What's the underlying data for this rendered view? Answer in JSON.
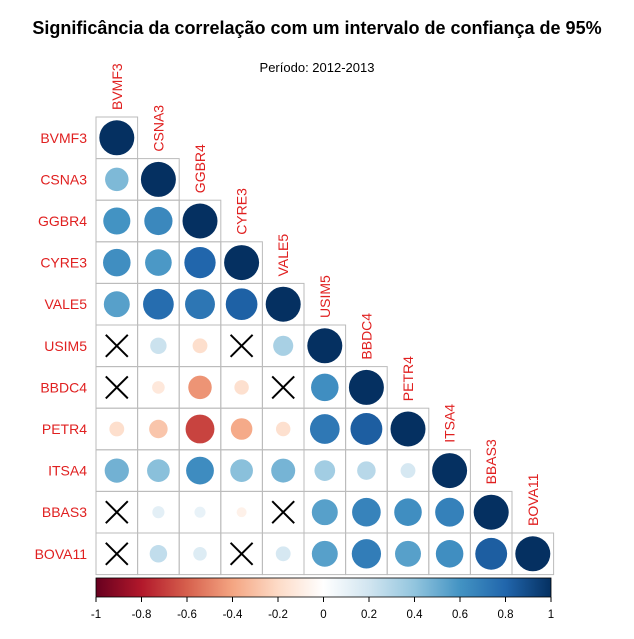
{
  "chart_data": {
    "type": "heatmap",
    "title": "Significância da correlação com um intervalo de confiança de 95%",
    "subtitle": "Período: 2012-2013",
    "variables": [
      "BVMF3",
      "CSNA3",
      "GGBR4",
      "CYRE3",
      "VALE5",
      "USIM5",
      "BBDC4",
      "PETR4",
      "ITSA4",
      "BBAS3",
      "BOVA11"
    ],
    "layout": "lower-triangle",
    "matrix": [
      [
        1.0
      ],
      [
        0.45,
        1.0
      ],
      [
        0.6,
        0.65,
        1.0
      ],
      [
        0.62,
        0.58,
        0.8,
        1.0
      ],
      [
        0.55,
        0.77,
        0.73,
        0.82,
        1.0
      ],
      [
        0.03,
        0.22,
        -0.18,
        0.02,
        0.33,
        1.0
      ],
      [
        0.05,
        -0.13,
        -0.45,
        -0.17,
        0.05,
        0.62,
        1.0
      ],
      [
        -0.18,
        -0.28,
        -0.68,
        -0.38,
        -0.17,
        0.72,
        0.83,
        1.0
      ],
      [
        0.48,
        0.42,
        0.63,
        0.42,
        0.47,
        0.35,
        0.28,
        0.18,
        1.0
      ],
      [
        0.03,
        0.12,
        0.1,
        -0.08,
        0.02,
        0.55,
        0.67,
        0.62,
        0.68,
        1.0
      ],
      [
        0.08,
        0.25,
        0.15,
        0.05,
        0.18,
        0.55,
        0.7,
        0.55,
        0.62,
        0.83,
        1.0
      ]
    ],
    "insignificant": [
      [
        5,
        0
      ],
      [
        5,
        3
      ],
      [
        6,
        0
      ],
      [
        6,
        4
      ],
      [
        9,
        0
      ],
      [
        9,
        4
      ],
      [
        10,
        0
      ],
      [
        10,
        3
      ]
    ],
    "insignificant_marker": "cross",
    "color_scale": {
      "min": -1,
      "max": 1,
      "stops": [
        "#67001F",
        "#B2182B",
        "#D6604D",
        "#F4A582",
        "#FDDBC7",
        "#FFFFFF",
        "#D1E5F0",
        "#92C5DE",
        "#4393C3",
        "#2166AC",
        "#053061"
      ],
      "ticks": [
        -1,
        -0.8,
        -0.6,
        -0.4,
        -0.2,
        0,
        0.2,
        0.4,
        0.6,
        0.8,
        1
      ],
      "tick_labels": [
        "-1",
        "-0.8",
        "-0.6",
        "-0.4",
        "-0.2",
        "0",
        "0.2",
        "0.4",
        "0.6",
        "0.8",
        "1"
      ]
    },
    "label_color": "#E02020",
    "grid_color": "#BBBBBB",
    "legend": "bottom"
  }
}
